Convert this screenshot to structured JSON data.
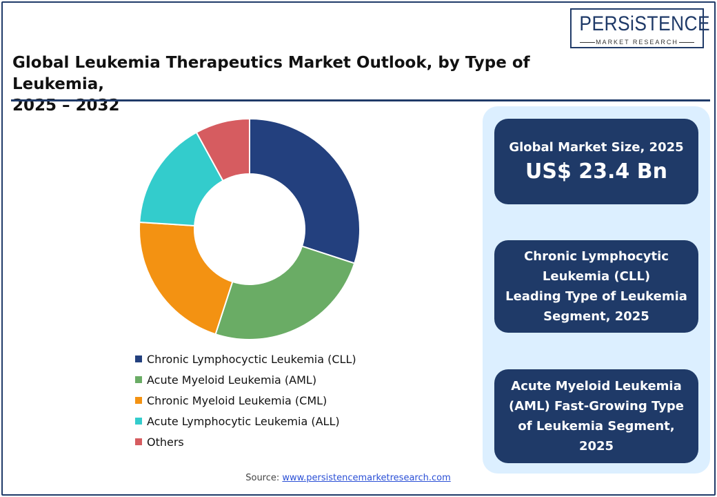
{
  "title_lines": [
    "Global Leukemia Therapeutics Market Outlook, by Type of Leukemia,",
    "2025 – 2032"
  ],
  "logo": {
    "name": "PERSiSTENCE",
    "sub": "MARKET RESEARCH"
  },
  "colors": {
    "brand": "#1f3a68",
    "panel": "#dcefff",
    "cll": "#23407e",
    "aml": "#6aac65",
    "cml": "#f39212",
    "all": "#33cccc",
    "others": "#d65c60"
  },
  "chart_data": {
    "type": "pie",
    "variant": "donut",
    "title": "",
    "categories": [
      "Chronic Lymphocyctic Leukemia (CLL)",
      "Acute Myeloid Leukemia (AML)",
      "Chronic Myeloid Leukemia (CML)",
      "Acute Lymphocytic Leukemia (ALL)",
      "Others"
    ],
    "values": [
      30,
      25,
      21,
      16,
      8
    ],
    "colors": [
      "#23407e",
      "#6aac65",
      "#f39212",
      "#33cccc",
      "#d65c60"
    ],
    "legend_placement": "bottom"
  },
  "cards": [
    {
      "lines": [
        "Global Market Size, 2025"
      ],
      "big": "US$ 23.4 Bn"
    },
    {
      "lines": [
        "Chronic Lymphocytic",
        "Leukemia (CLL)",
        "Leading Type of Leukemia",
        "Segment, 2025"
      ]
    },
    {
      "lines": [
        "Acute Myeloid Leukemia",
        "(AML) Fast-Growing Type",
        "of Leukemia Segment,",
        "2025"
      ]
    }
  ],
  "source": {
    "label": "Source:",
    "link": "www.persistencemarketresearch.com"
  }
}
